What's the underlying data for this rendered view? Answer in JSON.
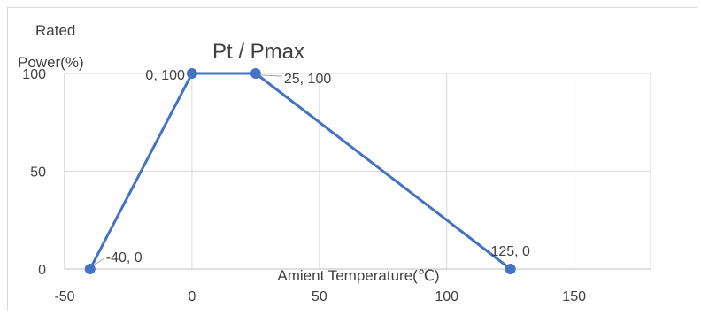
{
  "chart_data": {
    "type": "line",
    "title": "Pt / Pmax",
    "xlabel": "Amient Temperature(℃)",
    "ylabel_line1": "Rated",
    "ylabel_line2": "Power(%)",
    "xlim": [
      -50,
      180
    ],
    "ylim": [
      0,
      100
    ],
    "x_ticks": [
      -50,
      0,
      50,
      100,
      150
    ],
    "y_ticks": [
      0,
      50,
      100
    ],
    "grid": true,
    "series": [
      {
        "color": "#4472c4",
        "points": [
          {
            "x": -40,
            "y": 0,
            "label": "-40, 0"
          },
          {
            "x": 0,
            "y": 100,
            "label": "0, 100"
          },
          {
            "x": 25,
            "y": 100,
            "label": "25, 100"
          },
          {
            "x": 125,
            "y": 0,
            "label": "125, 0"
          }
        ]
      }
    ]
  }
}
